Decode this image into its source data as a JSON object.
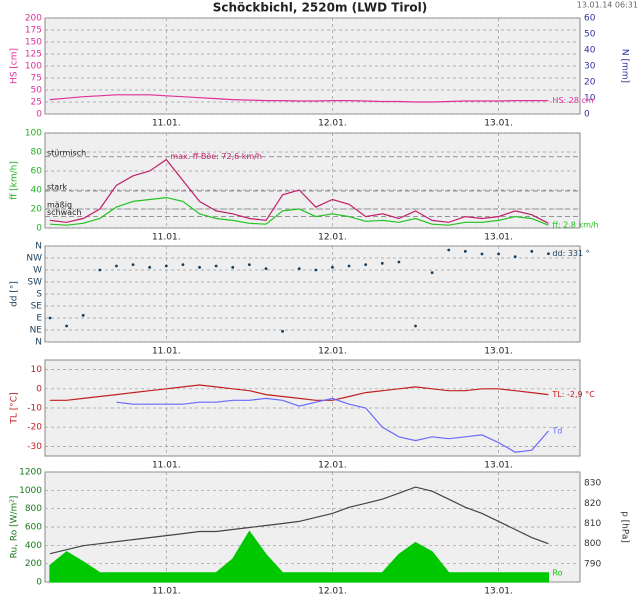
{
  "title": "Schöckbichl, 2520m (LWD Tirol)",
  "timestamp": "13.01.14 06:31",
  "chart_data": [
    {
      "type": "line",
      "ylabel": "HS [cm]",
      "ylabel_color": "#e0309a",
      "y2label": "N [mm]",
      "y2label_color": "#3030a0",
      "x": [
        10.3,
        10.4,
        10.5,
        10.6,
        10.7,
        10.8,
        10.9,
        11.0,
        11.1,
        11.2,
        11.3,
        11.4,
        11.5,
        11.6,
        11.7,
        11.8,
        11.9,
        12.0,
        12.1,
        12.2,
        12.3,
        12.4,
        12.5,
        12.6,
        12.7,
        12.8,
        12.9,
        13.0,
        13.1,
        13.2,
        13.3
      ],
      "xlim": [
        10.27,
        13.49
      ],
      "xticks": [
        {
          "value": 11,
          "label": "11.01."
        },
        {
          "value": 12,
          "label": "12.01."
        },
        {
          "value": 13,
          "label": "13.01."
        }
      ],
      "ylim": [
        0,
        200
      ],
      "yticks": [
        0,
        25,
        50,
        75,
        100,
        125,
        150,
        175,
        200
      ],
      "y2lim": [
        0,
        60
      ],
      "y2ticks": [
        0,
        10,
        20,
        30,
        40,
        50,
        60
      ],
      "grid": true,
      "series": [
        {
          "name": "HS",
          "color": "#e0309a",
          "label": "HS: 28 cm",
          "values": [
            30,
            33,
            36,
            38,
            40,
            40,
            40,
            38,
            36,
            34,
            32,
            30,
            29,
            28,
            28,
            27,
            27,
            28,
            28,
            27,
            26,
            26,
            25,
            25,
            26,
            27,
            27,
            27,
            28,
            28,
            28
          ]
        }
      ]
    },
    {
      "type": "line",
      "ylabel": "ff [km/h]",
      "ylabel_color": "#22b022",
      "x": [
        10.3,
        10.4,
        10.5,
        10.6,
        10.7,
        10.8,
        10.9,
        11.0,
        11.1,
        11.2,
        11.3,
        11.4,
        11.5,
        11.6,
        11.7,
        11.8,
        11.9,
        12.0,
        12.1,
        12.2,
        12.3,
        12.4,
        12.5,
        12.6,
        12.7,
        12.8,
        12.9,
        13.0,
        13.1,
        13.2,
        13.3
      ],
      "xlim": [
        10.27,
        13.49
      ],
      "xticks": [
        {
          "value": 11,
          "label": "11.01."
        },
        {
          "value": 12,
          "label": "12.01."
        },
        {
          "value": 13,
          "label": "13.01."
        }
      ],
      "ylim": [
        0,
        100
      ],
      "yticks": [
        0,
        20,
        40,
        60,
        80,
        100
      ],
      "grid": true,
      "reference_lines": [
        {
          "label": "stürmisch",
          "value": 75
        },
        {
          "label": "stark",
          "value": 39
        },
        {
          "label": "mäßig",
          "value": 20
        },
        {
          "label": "schwach",
          "value": 12
        }
      ],
      "series": [
        {
          "color": "#c0206a",
          "label": "max. ff Böe: 72,6 km/h",
          "values": [
            8,
            6,
            10,
            20,
            45,
            55,
            60,
            72,
            50,
            28,
            18,
            15,
            10,
            8,
            35,
            40,
            22,
            30,
            25,
            12,
            15,
            10,
            18,
            8,
            6,
            12,
            10,
            12,
            18,
            14,
            5
          ]
        },
        {
          "name": "ff",
          "color": "#22c322",
          "label": "ff: 2,8 km/h",
          "values": [
            4,
            3,
            5,
            10,
            22,
            28,
            30,
            32,
            28,
            15,
            10,
            8,
            5,
            4,
            18,
            20,
            12,
            15,
            12,
            7,
            8,
            6,
            10,
            4,
            3,
            6,
            6,
            8,
            12,
            10,
            3
          ]
        }
      ]
    },
    {
      "type": "scatter",
      "ylabel": "dd [°]",
      "ylabel_color": "#1a3f5c",
      "x": [
        10.3,
        10.4,
        10.5,
        10.6,
        10.7,
        10.8,
        10.9,
        11.0,
        11.1,
        11.2,
        11.3,
        11.4,
        11.5,
        11.6,
        11.7,
        11.8,
        11.9,
        12.0,
        12.1,
        12.2,
        12.3,
        12.4,
        12.5,
        12.6,
        12.7,
        12.8,
        12.9,
        13.0,
        13.1,
        13.2,
        13.3
      ],
      "xlim": [
        10.27,
        13.49
      ],
      "xticks": [
        {
          "value": 11,
          "label": "11.01."
        },
        {
          "value": 12,
          "label": "12.01."
        },
        {
          "value": 13,
          "label": "13.01."
        }
      ],
      "ylim": [
        0,
        360
      ],
      "yticks": [
        {
          "value": 0,
          "label": "N"
        },
        {
          "value": 45,
          "label": "NE"
        },
        {
          "value": 90,
          "label": "E"
        },
        {
          "value": 135,
          "label": "SE"
        },
        {
          "value": 180,
          "label": "S"
        },
        {
          "value": 225,
          "label": "SW"
        },
        {
          "value": 270,
          "label": "W"
        },
        {
          "value": 315,
          "label": "NW"
        },
        {
          "value": 360,
          "label": "N"
        }
      ],
      "grid": true,
      "series": [
        {
          "name": "dd",
          "color": "#1a3f5c",
          "label": "dd: 331 °",
          "values": [
            90,
            60,
            100,
            270,
            285,
            290,
            280,
            285,
            290,
            280,
            285,
            280,
            290,
            275,
            40,
            275,
            270,
            280,
            285,
            290,
            295,
            300,
            60,
            260,
            345,
            340,
            330,
            330,
            320,
            340,
            331
          ]
        }
      ]
    },
    {
      "type": "line",
      "ylabel": "TL [°C]",
      "ylabel_color": "#c02020",
      "x": [
        10.3,
        10.4,
        10.5,
        10.6,
        10.7,
        10.8,
        10.9,
        11.0,
        11.1,
        11.2,
        11.3,
        11.4,
        11.5,
        11.6,
        11.7,
        11.8,
        11.9,
        12.0,
        12.1,
        12.2,
        12.3,
        12.4,
        12.5,
        12.6,
        12.7,
        12.8,
        12.9,
        13.0,
        13.1,
        13.2,
        13.3
      ],
      "xlim": [
        10.27,
        13.49
      ],
      "xticks": [
        {
          "value": 11,
          "label": "11.01."
        },
        {
          "value": 12,
          "label": "12.01."
        },
        {
          "value": 13,
          "label": "13.01."
        }
      ],
      "ylim": [
        -35,
        15
      ],
      "yticks": [
        -30,
        -20,
        -10,
        0,
        10
      ],
      "grid": true,
      "series": [
        {
          "name": "TL",
          "color": "#c02020",
          "label": "TL: -2,9 °C",
          "values": [
            -6,
            -6,
            -5,
            -4,
            -3,
            -2,
            -1,
            0,
            1,
            2,
            1,
            0,
            -1,
            -3,
            -4,
            -5,
            -6,
            -6,
            -4,
            -2,
            -1,
            0,
            1,
            0,
            -1,
            -1,
            0,
            0,
            -1,
            -2,
            -3
          ]
        },
        {
          "name": "Td",
          "color": "#6a6aff",
          "label": "Td",
          "values": [
            null,
            null,
            null,
            null,
            -7,
            -8,
            -8,
            -8,
            -8,
            -7,
            -7,
            -6,
            -6,
            -5,
            -6,
            -9,
            -7,
            -5,
            -8,
            -10,
            -20,
            -25,
            -27,
            -25,
            -26,
            -25,
            -24,
            -28,
            -33,
            -32,
            -22
          ]
        }
      ]
    },
    {
      "type": "line",
      "ylabel": "Ru, Ro [W/m²]",
      "ylabel_color": "#1a7a1a",
      "y2label": "p [hPa]",
      "y2label_color": "#333333",
      "x": [
        10.3,
        10.4,
        10.5,
        10.6,
        10.7,
        10.8,
        10.9,
        11.0,
        11.1,
        11.2,
        11.3,
        11.4,
        11.5,
        11.6,
        11.7,
        11.8,
        11.9,
        12.0,
        12.1,
        12.2,
        12.3,
        12.4,
        12.5,
        12.6,
        12.7,
        12.8,
        12.9,
        13.0,
        13.1,
        13.2,
        13.3
      ],
      "xlim": [
        10.27,
        13.49
      ],
      "xticks": [
        {
          "value": 11,
          "label": "11.01."
        },
        {
          "value": 12,
          "label": "12.01."
        },
        {
          "value": 13,
          "label": "13.01."
        }
      ],
      "ylim": [
        0,
        1200
      ],
      "yticks": [
        0,
        200,
        400,
        600,
        800,
        1000,
        1200
      ],
      "y2lim": [
        781,
        835.5
      ],
      "y2ticks": [
        790,
        800,
        810,
        820,
        830
      ],
      "grid": true,
      "series": [
        {
          "name": "Ro",
          "color": "#00c800",
          "fill": true,
          "label": "Ro",
          "values": [
            180,
            330,
            220,
            100,
            100,
            100,
            100,
            100,
            100,
            100,
            100,
            250,
            550,
            300,
            100,
            100,
            100,
            100,
            100,
            100,
            100,
            300,
            430,
            330,
            100,
            100,
            100,
            100,
            100,
            100,
            100
          ]
        },
        {
          "color": "#444444",
          "axis": "y2",
          "values": [
            795,
            797,
            799,
            800,
            801,
            802,
            803,
            804,
            805,
            806,
            806,
            807,
            808,
            809,
            810,
            811,
            813,
            815,
            818,
            820,
            822,
            825,
            828,
            826,
            822,
            818,
            815,
            811,
            807,
            803,
            800
          ]
        }
      ]
    }
  ]
}
